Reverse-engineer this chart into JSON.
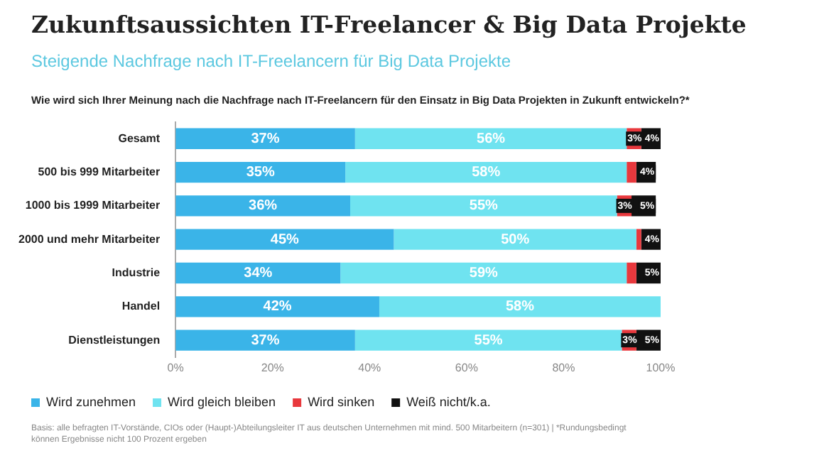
{
  "chart_data": {
    "type": "bar",
    "orientation": "horizontal",
    "stacked": true,
    "title": "Zukunftsaussichten IT-Freelancer & Big Data Projekte",
    "subtitle": "Steigende Nachfrage nach IT-Freelancern für Big Data Projekte",
    "annotations": [
      "Wie wird sich Ihrer Meinung nach die Nachfrage nach IT-Freelancern für den Einsatz in Big Data Projekten in Zukunft entwickeln?*",
      "Basis: alle befragten IT-Vorstände, CIOs oder (Haupt-)Abteilungsleiter IT aus deutschen Unternehmen mit mind. 500 Mitarbeitern (n=301) | *Rundungsbedingt können Ergebnisse nicht 100 Prozent ergeben"
    ],
    "categories": [
      "Gesamt",
      "500 bis 999 Mitarbeiter",
      "1000 bis 1999 Mitarbeiter",
      "2000 und mehr Mitarbeiter",
      "Industrie",
      "Handel",
      "Dienstleistungen"
    ],
    "series": [
      {
        "name": "Wird zunehmen",
        "color": "#3ab4e8",
        "values": [
          37,
          35,
          36,
          45,
          34,
          42,
          37
        ],
        "value_labels": [
          "37%",
          "35%",
          "36%",
          "45%",
          "34%",
          "42%",
          "37%"
        ]
      },
      {
        "name": "Wird gleich bleiben",
        "color": "#6fe3f0",
        "values": [
          56,
          58,
          55,
          50,
          59,
          58,
          55
        ],
        "value_labels": [
          "56%",
          "58%",
          "55%",
          "50%",
          "59%",
          "58%",
          "55%"
        ]
      },
      {
        "name": "Wird sinken",
        "color": "#e8383d",
        "values": [
          3,
          2,
          3,
          1,
          2,
          0,
          3
        ],
        "value_labels": [
          "3%",
          null,
          "3%",
          null,
          null,
          null,
          "3%"
        ]
      },
      {
        "name": "Weiß nicht/k.a.",
        "color": "#111111",
        "values": [
          4,
          4,
          5,
          4,
          5,
          0,
          5
        ],
        "value_labels": [
          "4%",
          "4%",
          "5%",
          "4%",
          "5%",
          null,
          "5%"
        ]
      }
    ],
    "xlim": [
      0,
      100
    ],
    "xticks": [
      {
        "value": 0,
        "label": "0%"
      },
      {
        "value": 20,
        "label": "20%"
      },
      {
        "value": 40,
        "label": "40%"
      },
      {
        "value": 60,
        "label": "60%"
      },
      {
        "value": 80,
        "label": "80%"
      },
      {
        "value": 100,
        "label": "100%"
      }
    ],
    "grid": false,
    "legend": "bottom"
  }
}
